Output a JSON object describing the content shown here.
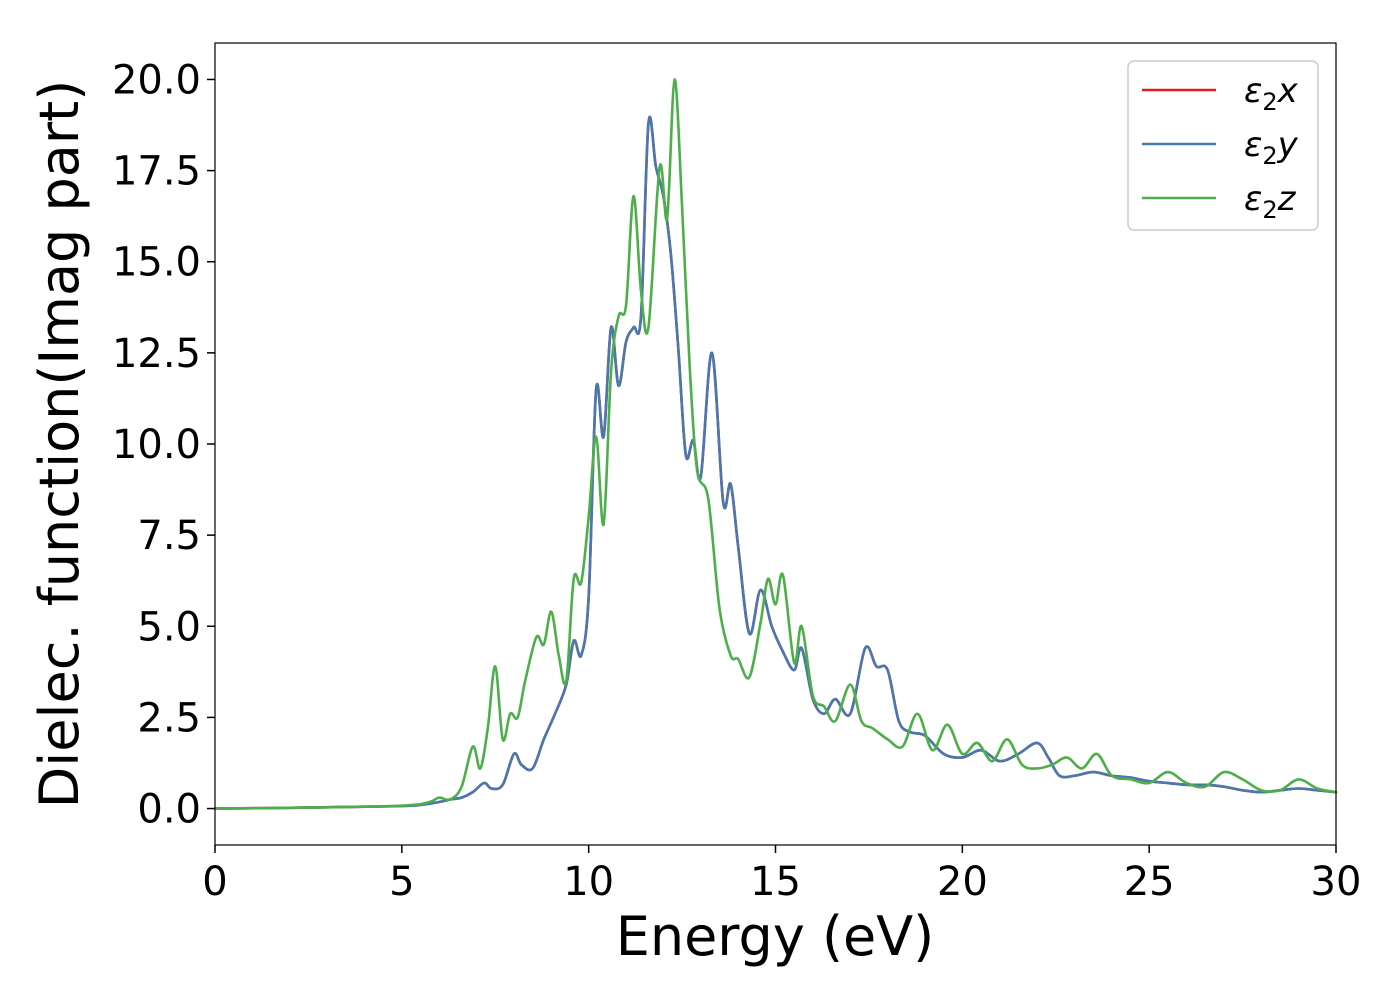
{
  "chart_data": {
    "type": "line",
    "title": "",
    "xlabel": "Energy (eV)",
    "ylabel": "Dielec. function(Imag part)",
    "xlim": [
      0,
      30
    ],
    "ylim": [
      -1.0,
      21.0
    ],
    "x_ticks": [
      0,
      5,
      10,
      15,
      20,
      25,
      30
    ],
    "x_tick_labels": [
      "0",
      "5",
      "10",
      "15",
      "20",
      "25",
      "30"
    ],
    "y_ticks": [
      0,
      2.5,
      5,
      7.5,
      10,
      12.5,
      15,
      17.5,
      20
    ],
    "y_tick_labels": [
      "0.0",
      "2.5",
      "5.0",
      "7.5",
      "10.0",
      "12.5",
      "15.0",
      "17.5",
      "20.0"
    ],
    "grid": false,
    "legend_position": "top-right",
    "series": [
      {
        "name": "ε2x",
        "legend_main": "ε",
        "legend_sub": "2",
        "legend_tail": "x",
        "color": "#e41a1c",
        "x": [
          0,
          2,
          4,
          5,
          5.5,
          6,
          6.3,
          6.6,
          6.9,
          7.2,
          7.4,
          7.7,
          8.0,
          8.2,
          8.5,
          8.8,
          9.1,
          9.4,
          9.6,
          9.8,
          10.0,
          10.2,
          10.4,
          10.6,
          10.8,
          11.0,
          11.2,
          11.4,
          11.6,
          11.8,
          12.0,
          12.2,
          12.4,
          12.6,
          12.8,
          13.0,
          13.3,
          13.6,
          13.8,
          14.0,
          14.3,
          14.6,
          14.9,
          15.2,
          15.5,
          15.7,
          16.0,
          16.3,
          16.6,
          17.0,
          17.4,
          17.7,
          18.0,
          18.3,
          18.6,
          19.0,
          19.5,
          20.0,
          20.5,
          21.0,
          21.5,
          22.0,
          22.3,
          22.6,
          23.0,
          23.5,
          24.0,
          24.5,
          25.0,
          25.5,
          26.0,
          26.5,
          27.0,
          27.5,
          28.0,
          28.5,
          29.0,
          29.5,
          30.0
        ],
        "y": [
          0.0,
          0.02,
          0.05,
          0.07,
          0.1,
          0.18,
          0.25,
          0.3,
          0.45,
          0.7,
          0.55,
          0.65,
          1.5,
          1.2,
          1.1,
          1.9,
          2.6,
          3.4,
          4.6,
          4.2,
          5.8,
          11.5,
          10.2,
          13.2,
          11.6,
          12.8,
          13.2,
          13.5,
          18.8,
          17.6,
          16.8,
          15.2,
          12.6,
          9.7,
          10.1,
          9.1,
          12.5,
          8.4,
          8.9,
          7.2,
          4.8,
          6.0,
          5.0,
          4.3,
          3.8,
          4.4,
          3.0,
          2.6,
          3.0,
          2.6,
          4.4,
          3.9,
          3.8,
          2.4,
          2.1,
          2.0,
          1.5,
          1.4,
          1.6,
          1.3,
          1.5,
          1.8,
          1.4,
          0.9,
          0.9,
          1.0,
          0.9,
          0.85,
          0.75,
          0.7,
          0.65,
          0.65,
          0.6,
          0.5,
          0.45,
          0.5,
          0.55,
          0.5,
          0.45
        ]
      },
      {
        "name": "ε2y",
        "legend_main": "ε",
        "legend_sub": "2",
        "legend_tail": "y",
        "color": "#4878b0",
        "x": [
          0,
          2,
          4,
          5,
          5.5,
          6,
          6.3,
          6.6,
          6.9,
          7.2,
          7.4,
          7.7,
          8.0,
          8.2,
          8.5,
          8.8,
          9.1,
          9.4,
          9.6,
          9.8,
          10.0,
          10.2,
          10.4,
          10.6,
          10.8,
          11.0,
          11.2,
          11.4,
          11.6,
          11.8,
          12.0,
          12.2,
          12.4,
          12.6,
          12.8,
          13.0,
          13.3,
          13.6,
          13.8,
          14.0,
          14.3,
          14.6,
          14.9,
          15.2,
          15.5,
          15.7,
          16.0,
          16.3,
          16.6,
          17.0,
          17.4,
          17.7,
          18.0,
          18.3,
          18.6,
          19.0,
          19.5,
          20.0,
          20.5,
          21.0,
          21.5,
          22.0,
          22.3,
          22.6,
          23.0,
          23.5,
          24.0,
          24.5,
          25.0,
          25.5,
          26.0,
          26.5,
          27.0,
          27.5,
          28.0,
          28.5,
          29.0,
          29.5,
          30.0
        ],
        "y": [
          0.0,
          0.02,
          0.05,
          0.07,
          0.1,
          0.18,
          0.25,
          0.3,
          0.45,
          0.7,
          0.55,
          0.65,
          1.5,
          1.2,
          1.1,
          1.9,
          2.6,
          3.4,
          4.6,
          4.2,
          5.8,
          11.5,
          10.2,
          13.2,
          11.6,
          12.8,
          13.2,
          13.5,
          18.8,
          17.6,
          16.8,
          15.2,
          12.6,
          9.7,
          10.1,
          9.1,
          12.5,
          8.4,
          8.9,
          7.2,
          4.8,
          6.0,
          5.0,
          4.3,
          3.8,
          4.4,
          3.0,
          2.6,
          3.0,
          2.6,
          4.4,
          3.9,
          3.8,
          2.4,
          2.1,
          2.0,
          1.5,
          1.4,
          1.6,
          1.3,
          1.5,
          1.8,
          1.4,
          0.9,
          0.9,
          1.0,
          0.9,
          0.85,
          0.75,
          0.7,
          0.65,
          0.65,
          0.6,
          0.5,
          0.45,
          0.5,
          0.55,
          0.5,
          0.45
        ]
      },
      {
        "name": "ε2z",
        "legend_main": "ε",
        "legend_sub": "2",
        "legend_tail": "z",
        "color": "#4daf4a",
        "x": [
          0,
          2,
          4,
          5,
          5.5,
          5.8,
          6.0,
          6.3,
          6.6,
          6.9,
          7.1,
          7.3,
          7.5,
          7.7,
          7.9,
          8.1,
          8.3,
          8.6,
          8.8,
          9.0,
          9.2,
          9.4,
          9.6,
          9.8,
          10.0,
          10.2,
          10.4,
          10.6,
          10.8,
          11.0,
          11.2,
          11.4,
          11.6,
          11.9,
          12.1,
          12.3,
          12.5,
          12.7,
          12.9,
          13.2,
          13.5,
          13.8,
          14.0,
          14.3,
          14.6,
          14.8,
          15.0,
          15.2,
          15.5,
          15.7,
          16.0,
          16.3,
          16.6,
          17.0,
          17.3,
          17.6,
          18.0,
          18.4,
          18.8,
          19.2,
          19.6,
          20.0,
          20.4,
          20.8,
          21.2,
          21.6,
          22.0,
          22.4,
          22.8,
          23.2,
          23.6,
          24.0,
          24.5,
          25.0,
          25.5,
          26.0,
          26.5,
          27.0,
          27.5,
          28.0,
          28.5,
          29.0,
          29.5,
          30.0
        ],
        "y": [
          0.0,
          0.02,
          0.05,
          0.08,
          0.12,
          0.2,
          0.3,
          0.25,
          0.6,
          1.7,
          1.1,
          2.2,
          3.9,
          1.9,
          2.6,
          2.5,
          3.5,
          4.7,
          4.5,
          5.4,
          4.2,
          3.5,
          6.3,
          6.2,
          8.0,
          10.2,
          7.8,
          12.0,
          13.5,
          13.8,
          16.8,
          14.2,
          13.2,
          17.6,
          16.2,
          20.0,
          16.5,
          12.2,
          9.3,
          8.5,
          5.5,
          4.2,
          4.1,
          3.6,
          5.1,
          6.3,
          5.6,
          6.4,
          4.0,
          5.0,
          3.1,
          2.8,
          2.4,
          3.4,
          2.4,
          2.2,
          1.9,
          1.7,
          2.6,
          1.6,
          2.3,
          1.5,
          1.8,
          1.3,
          1.9,
          1.2,
          1.1,
          1.2,
          1.4,
          1.1,
          1.5,
          0.9,
          0.8,
          0.7,
          1.0,
          0.7,
          0.6,
          1.0,
          0.8,
          0.5,
          0.5,
          0.8,
          0.55,
          0.45
        ]
      }
    ]
  }
}
